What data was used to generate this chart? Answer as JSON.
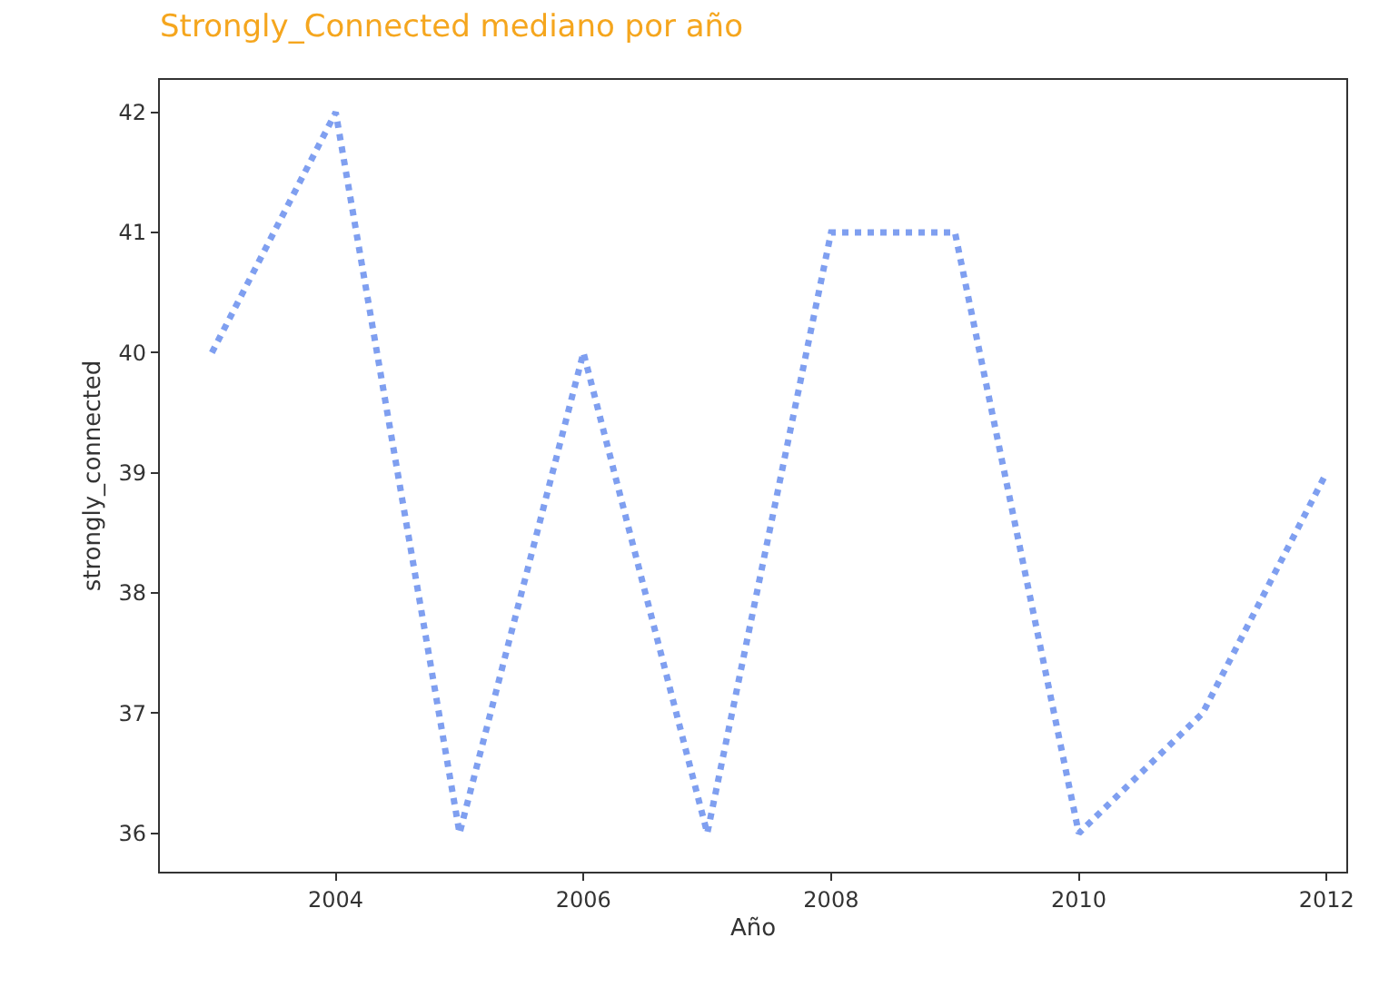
{
  "chart_data": {
    "type": "line",
    "title": "Strongly_Connected mediano por año",
    "xlabel": "Año",
    "ylabel": "strongly_connected",
    "x": [
      2003,
      2004,
      2005,
      2006,
      2007,
      2008,
      2009,
      2010,
      2011,
      2012
    ],
    "series": [
      {
        "color": "#7f9ff0",
        "values": [
          40,
          42,
          36,
          40,
          36,
          41,
          41,
          36,
          37,
          39
        ]
      }
    ],
    "xlim": [
      2002.58,
      2012.16
    ],
    "xticks": [
      2004,
      2006,
      2008,
      2010,
      2012
    ],
    "ylim": [
      35.68,
      42.27
    ],
    "yticks": [
      36,
      37,
      38,
      39,
      40,
      41,
      42
    ],
    "legend": false,
    "marker": "none",
    "line_style": "dotted"
  }
}
